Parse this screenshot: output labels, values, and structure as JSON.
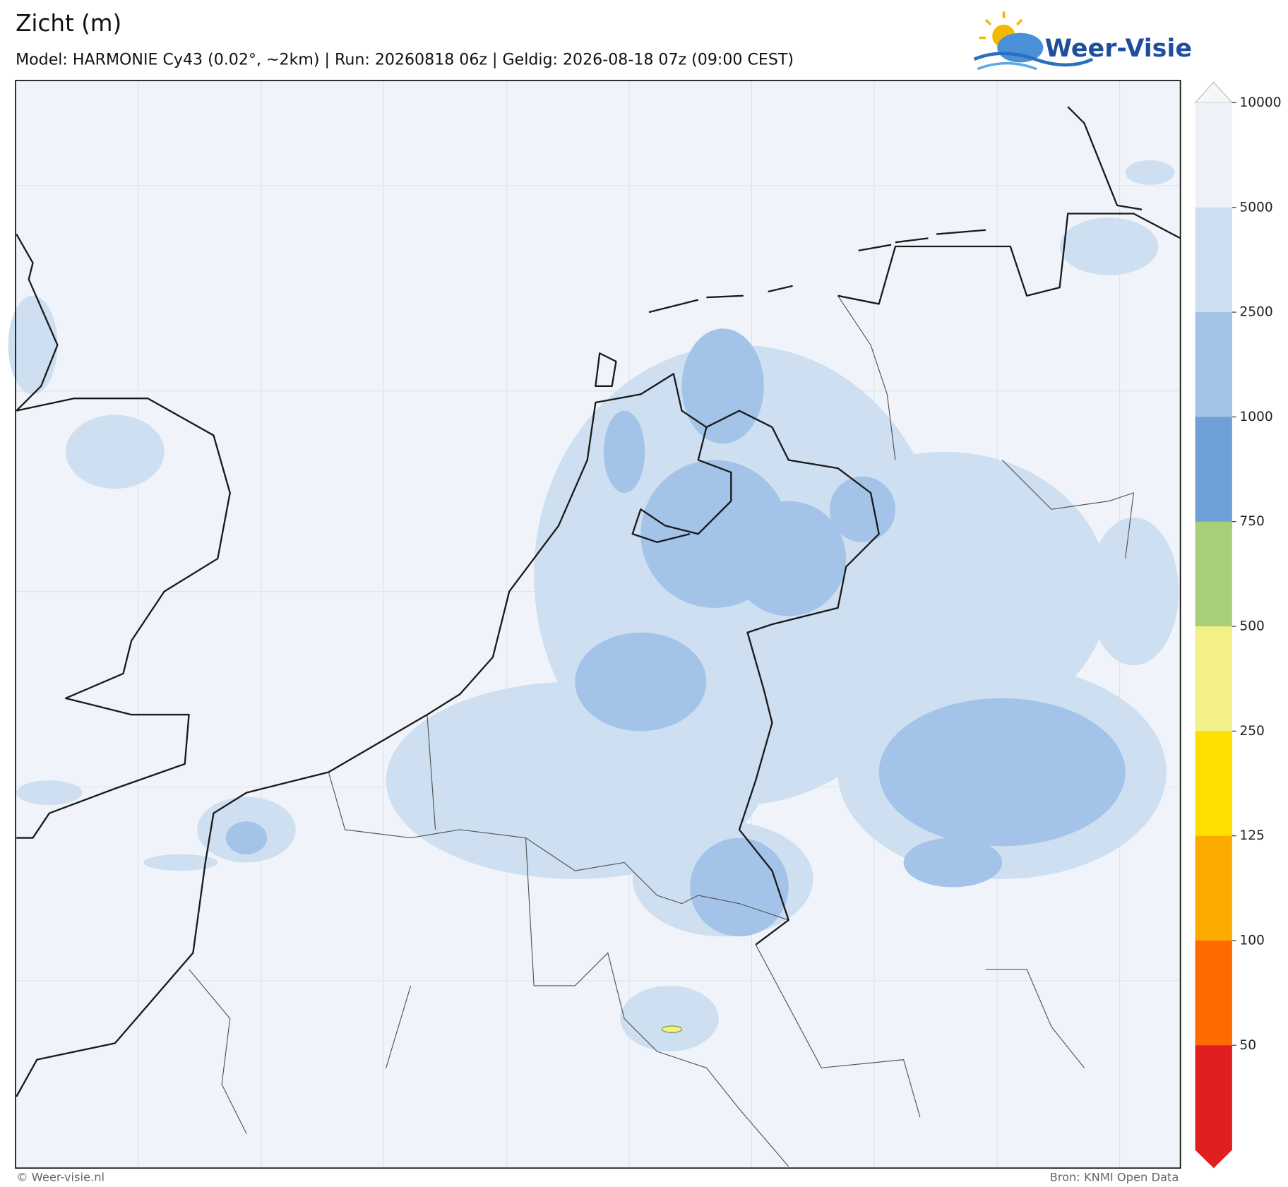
{
  "header": {
    "title": "Zicht (m)",
    "subtitle": "Model: HARMONIE Cy43 (0.02°, ~2km)  |  Run: 20260818 06z  |  Geldig: 2026-08-18 07z (09:00 CEST)",
    "logo": "Weer-Visie"
  },
  "colorbar": {
    "ticks": [
      10000,
      5000,
      2500,
      1000,
      750,
      500,
      250,
      125,
      100,
      50
    ],
    "colors": [
      "#f4f6fa",
      "#eef2f8",
      "#cddff0",
      "#a4c3e8",
      "#6fa0d8",
      "#a8cf78",
      "#f3f088",
      "#fde000",
      "#fdaa00",
      "#fc6a00",
      "#e02020",
      "#e02020"
    ]
  },
  "footer": {
    "left": "© Weer-visie.nl",
    "right": "Bron: KNMI Open Data"
  }
}
